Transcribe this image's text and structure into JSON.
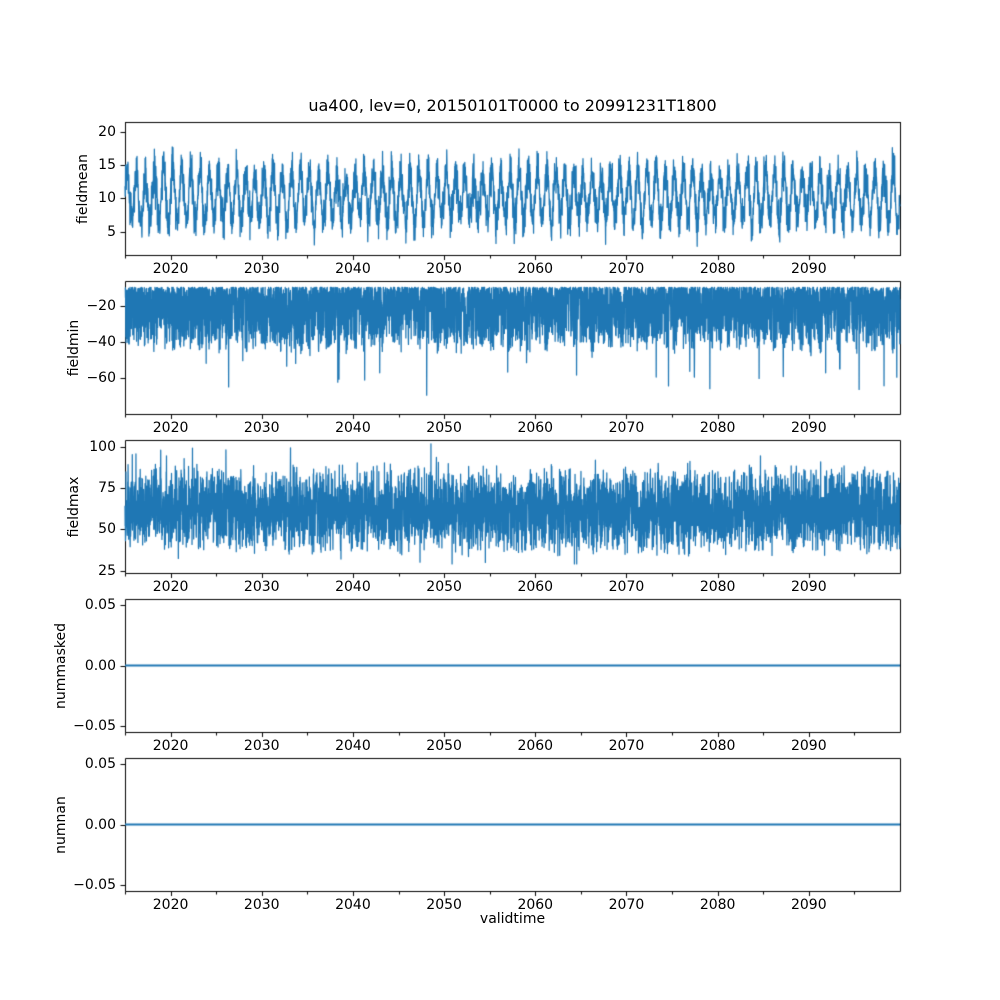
{
  "chart_data": {
    "type": "line",
    "title": "ua400, lev=0, 20150101T0000 to 20991231T1800",
    "xlabel": "validtime",
    "x_start": 2015.0,
    "x_end": 2100.0,
    "x_major_ticks": [
      2020,
      2030,
      2040,
      2050,
      2060,
      2070,
      2080,
      2090
    ],
    "x_major_tick_labels": [
      "2020",
      "2030",
      "2040",
      "2050",
      "2060",
      "2070",
      "2080",
      "2090"
    ],
    "x_minor_tick_step": 5,
    "x_tick_labels_under_each_panel": true,
    "line_color": "#1f77b4",
    "grid": false,
    "legend": "none",
    "panels": [
      {
        "name": "fieldmean",
        "ylabel": "fieldmean",
        "ylim": [
          1.5,
          21.5
        ],
        "yticks": [
          5,
          10,
          15,
          20
        ],
        "ytick_labels": [
          "5",
          "10",
          "15",
          "20"
        ],
        "series": {
          "kind": "seasonal_noise",
          "mean": 10.3,
          "annual_amplitude": 3.6,
          "amplitude_jitter": 0.4,
          "noise_sd": 1.45,
          "clamp": [
            2.8,
            20.6
          ],
          "points_per_year": 50,
          "description": "6-hourly field mean oscillating annually between about 5 and 17, extremes near 3 and 20.5"
        }
      },
      {
        "name": "fieldmin",
        "ylabel": "fieldmin",
        "ylim": [
          -80,
          -6
        ],
        "yticks": [
          -20,
          -40,
          -60
        ],
        "ytick_labels": [
          "−20",
          "−40",
          "−60"
        ],
        "series": {
          "kind": "skewed_negative",
          "top": -9.5,
          "band": 33,
          "skew": 1.9,
          "spike_prob": 0.025,
          "spike_extra": 30,
          "clamp": [
            -77,
            -7.5
          ],
          "n_points": 5100,
          "description": "dense band from about -10 to -45 with downward spikes reaching about -75"
        }
      },
      {
        "name": "fieldmax",
        "ylabel": "fieldmax",
        "ylim": [
          23.5,
          104.5
        ],
        "yticks": [
          25,
          50,
          75,
          100
        ],
        "ytick_labels": [
          "25",
          "50",
          "75",
          "100"
        ],
        "series": {
          "kind": "noisy_band",
          "center": 62,
          "half_range": 26,
          "spike_prob": 0.05,
          "spike_extra": 17,
          "clamp": [
            29,
            105
          ],
          "n_points": 5100,
          "description": "dense band from about 40 to 88 with spikes up to about 105 and down to about 30"
        }
      },
      {
        "name": "nummasked",
        "ylabel": "nummasked",
        "ylim": [
          -0.055,
          0.055
        ],
        "yticks": [
          0.05,
          0,
          -0.05
        ],
        "ytick_labels": [
          "0.05",
          "0.00",
          "−0.05"
        ],
        "series": {
          "kind": "constant",
          "value": 0,
          "description": "constant 0 for entire period"
        }
      },
      {
        "name": "numnan",
        "ylabel": "numnan",
        "ylim": [
          -0.055,
          0.055
        ],
        "yticks": [
          0.05,
          0,
          -0.05
        ],
        "ytick_labels": [
          "0.05",
          "0.00",
          "−0.05"
        ],
        "series": {
          "kind": "constant",
          "value": 0,
          "description": "constant 0 for entire period"
        }
      }
    ]
  }
}
